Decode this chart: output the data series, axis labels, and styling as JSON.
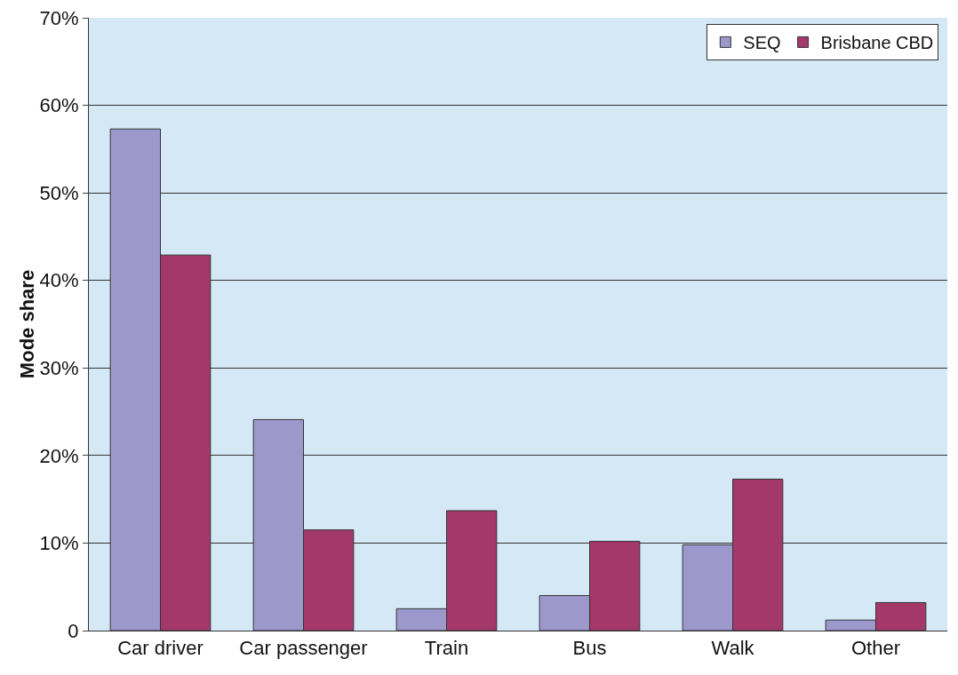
{
  "chart_data": {
    "type": "bar",
    "ylabel": "Mode share",
    "categories": [
      "Car driver",
      "Car passenger",
      "Train",
      "Bus",
      "Walk",
      "Other"
    ],
    "series": [
      {
        "name": "SEQ",
        "color": "#9d98cc",
        "values": [
          57.3,
          24.1,
          2.5,
          4.0,
          9.8,
          1.2
        ]
      },
      {
        "name": "Brisbane CBD",
        "color": "#a4386a",
        "values": [
          42.9,
          11.5,
          13.7,
          10.2,
          17.3,
          3.2
        ]
      }
    ],
    "ylim": [
      0,
      70
    ],
    "yticks": [
      {
        "value": 0,
        "label": "0"
      },
      {
        "value": 10,
        "label": "10%"
      },
      {
        "value": 20,
        "label": "20%"
      },
      {
        "value": 30,
        "label": "30%"
      },
      {
        "value": 40,
        "label": "40%"
      },
      {
        "value": 50,
        "label": "50%"
      },
      {
        "value": 60,
        "label": "60%"
      },
      {
        "value": 70,
        "label": "70%"
      }
    ],
    "grid": "y",
    "legend": "top right"
  }
}
